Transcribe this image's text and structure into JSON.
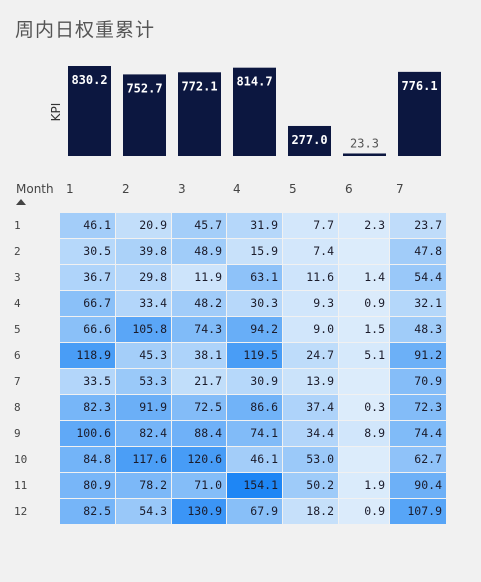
{
  "title": "周内日权重累计",
  "chart_data": [
    {
      "type": "bar",
      "categories": [
        "1",
        "2",
        "3",
        "4",
        "5",
        "6",
        "7"
      ],
      "values": [
        830.2,
        752.7,
        772.1,
        814.7,
        277.0,
        23.3,
        776.1
      ],
      "value_labels": [
        "830.2",
        "752.7",
        "772.1",
        "814.7",
        "277.0",
        "23.3",
        "776.1"
      ],
      "ylabel": "KPI",
      "bar_color": "#0c1740"
    },
    {
      "type": "heatmap",
      "row_header": "Month",
      "columns": [
        "1",
        "2",
        "3",
        "4",
        "5",
        "6",
        "7"
      ],
      "rows": [
        "1",
        "2",
        "3",
        "4",
        "5",
        "6",
        "7",
        "8",
        "9",
        "10",
        "11",
        "12"
      ],
      "values": [
        [
          46.1,
          20.9,
          45.7,
          31.9,
          7.7,
          2.3,
          23.7
        ],
        [
          30.5,
          39.8,
          48.9,
          15.9,
          7.4,
          null,
          47.8
        ],
        [
          36.7,
          29.8,
          11.9,
          63.1,
          11.6,
          1.4,
          54.4
        ],
        [
          66.7,
          33.4,
          48.2,
          30.3,
          9.3,
          0.9,
          32.1
        ],
        [
          66.6,
          105.8,
          74.3,
          94.2,
          9.0,
          1.5,
          48.3
        ],
        [
          118.9,
          45.3,
          38.1,
          119.5,
          24.7,
          5.1,
          91.2
        ],
        [
          33.5,
          53.3,
          21.7,
          30.9,
          13.9,
          null,
          70.9
        ],
        [
          82.3,
          91.9,
          72.5,
          86.6,
          37.4,
          0.3,
          72.3
        ],
        [
          100.6,
          82.4,
          88.4,
          74.1,
          34.4,
          8.9,
          74.4
        ],
        [
          84.8,
          117.6,
          120.6,
          46.1,
          53.0,
          null,
          62.7
        ],
        [
          80.9,
          78.2,
          71.0,
          154.1,
          50.2,
          1.9,
          90.4
        ],
        [
          82.5,
          54.3,
          130.9,
          67.9,
          18.2,
          0.9,
          107.9
        ]
      ],
      "labels": [
        [
          "46.1",
          "20.9",
          "45.7",
          "31.9",
          "7.7",
          "2.3",
          "23.7"
        ],
        [
          "30.5",
          "39.8",
          "48.9",
          "15.9",
          "7.4",
          "",
          "47.8"
        ],
        [
          "36.7",
          "29.8",
          "11.9",
          "63.1",
          "11.6",
          "1.4",
          "54.4"
        ],
        [
          "66.7",
          "33.4",
          "48.2",
          "30.3",
          "9.3",
          "0.9",
          "32.1"
        ],
        [
          "66.6",
          "105.8",
          "74.3",
          "94.2",
          "9.0",
          "1.5",
          "48.3"
        ],
        [
          "118.9",
          "45.3",
          "38.1",
          "119.5",
          "24.7",
          "5.1",
          "91.2"
        ],
        [
          "33.5",
          "53.3",
          "21.7",
          "30.9",
          "13.9",
          "",
          "70.9"
        ],
        [
          "82.3",
          "91.9",
          "72.5",
          "86.6",
          "37.4",
          "0.3",
          "72.3"
        ],
        [
          "100.6",
          "82.4",
          "88.4",
          "74.1",
          "34.4",
          "8.9",
          "74.4"
        ],
        [
          "84.8",
          "117.6",
          "120.6",
          "46.1",
          "53.0",
          "",
          "62.7"
        ],
        [
          "80.9",
          "78.2",
          "71.0",
          "154.1",
          "50.2",
          "1.9",
          "90.4"
        ],
        [
          "82.5",
          "54.3",
          "130.9",
          "67.9",
          "18.2",
          "0.9",
          "107.9"
        ]
      ],
      "color_low": "#dcecfb",
      "color_high": "#1e86f5"
    }
  ]
}
